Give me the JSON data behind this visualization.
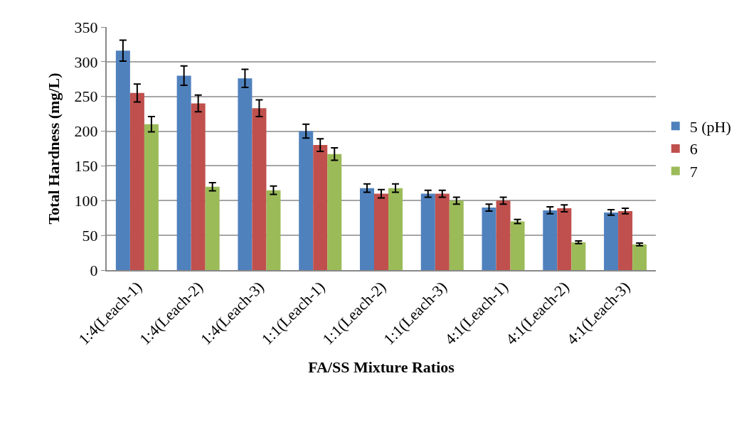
{
  "chart_data": {
    "type": "bar",
    "xlabel": "FA/SS Mixture Ratios",
    "ylabel": "Total Hardness (mg/L)",
    "categories": [
      "1:4(Leach-1)",
      "1:4(Leach-2)",
      "1:4(Leach-3)",
      "1:1(Leach-1)",
      "1:1(Leach-2)",
      "1:1(Leach-3)",
      "4:1(Leach-1)",
      "4:1(Leach-2)",
      "4:1(Leach-3)"
    ],
    "series": [
      {
        "name": "5 (pH)",
        "color": "#4f81bd",
        "values": [
          316,
          280,
          276,
          200,
          118,
          110,
          90,
          86,
          83
        ],
        "errors": [
          15,
          14,
          13,
          10,
          6,
          5,
          5,
          5,
          4
        ]
      },
      {
        "name": "6",
        "color": "#c0504d",
        "values": [
          255,
          240,
          233,
          180,
          110,
          110,
          100,
          89,
          85
        ],
        "errors": [
          13,
          12,
          12,
          9,
          6,
          5,
          5,
          5,
          4
        ]
      },
      {
        "name": "7",
        "color": "#9bbb59",
        "values": [
          210,
          120,
          115,
          167,
          118,
          100,
          70,
          40,
          37
        ],
        "errors": [
          11,
          6,
          6,
          9,
          6,
          5,
          3,
          2,
          2
        ]
      }
    ],
    "ylim": [
      0,
      350
    ],
    "yticks": [
      0,
      50,
      100,
      150,
      200,
      250,
      300,
      350
    ],
    "grid": "y",
    "legend": "right"
  }
}
